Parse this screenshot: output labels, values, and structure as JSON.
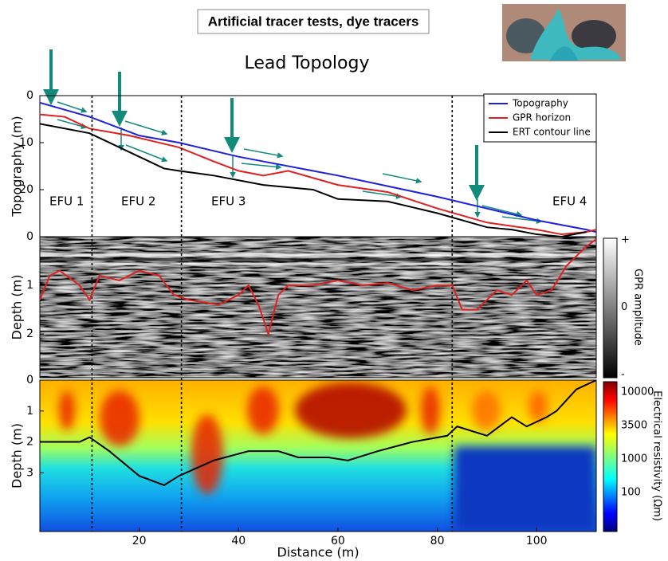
{
  "header": "Artificial tracer tests, dye tracers",
  "title": "Lead Topology",
  "chart_data": [
    {
      "type": "line",
      "ylabel": "Topography (m)",
      "xlim": [
        0,
        112
      ],
      "ylim": [
        0,
        30
      ],
      "yticks": [
        0,
        10,
        20
      ],
      "boundaries": [
        10.5,
        28.5,
        83
      ],
      "annotations": [
        "EFU 1",
        "EFU 2",
        "EFU 3",
        "EFU 4"
      ],
      "legend": "upper right",
      "series": [
        {
          "name": "Topography",
          "color": "#1f1fe0",
          "x": [
            0,
            10,
            20,
            28,
            40,
            60,
            80,
            90,
            100,
            110,
            112
          ],
          "values": [
            1.5,
            4.5,
            8.5,
            10,
            13,
            17,
            21.5,
            24,
            26.5,
            28.5,
            29
          ]
        },
        {
          "name": "GPR horizon",
          "color": "#e01f1f",
          "x": [
            0,
            5,
            10,
            18,
            22,
            28,
            35,
            40,
            45,
            50,
            60,
            70,
            80,
            90,
            100,
            105,
            110,
            112
          ],
          "values": [
            4,
            4.5,
            7,
            8.5,
            9.5,
            11,
            14,
            16,
            17,
            16,
            19,
            20.5,
            24,
            27,
            28.5,
            29.5,
            29,
            28.5
          ]
        },
        {
          "name": "ERT contour line",
          "color": "#000000",
          "x": [
            0,
            10,
            15,
            20,
            25,
            28,
            35,
            45,
            55,
            60,
            70,
            80,
            90,
            95,
            100,
            105,
            110
          ],
          "values": [
            6,
            8,
            10.5,
            13,
            15.5,
            16,
            17,
            19,
            20,
            22,
            22.5,
            25,
            28,
            28.5,
            29.5,
            30,
            29
          ]
        }
      ]
    },
    {
      "type": "line",
      "ylabel": "Depth (m)",
      "xlim": [
        0,
        112
      ],
      "ylim": [
        0,
        2.9
      ],
      "yticks": [
        0,
        1,
        2
      ],
      "colorbar": {
        "label": "GPR amplitude",
        "ticks": [
          "+",
          "0",
          "-"
        ]
      },
      "series": [
        {
          "color": "#e01f1f",
          "x": [
            0,
            2,
            4,
            8,
            10,
            12,
            16,
            20,
            24,
            27,
            30,
            36,
            40,
            42,
            44,
            46,
            48,
            50,
            55,
            60,
            65,
            70,
            75,
            80,
            83,
            85,
            88,
            92,
            95,
            98,
            100,
            103,
            106,
            110,
            112
          ],
          "values": [
            1.3,
            0.8,
            0.7,
            1.0,
            1.3,
            0.8,
            0.9,
            0.7,
            0.8,
            1.2,
            1.3,
            1.4,
            1.2,
            1.0,
            1.4,
            2.0,
            1.2,
            1.0,
            1.0,
            0.9,
            1.0,
            0.95,
            1.1,
            1.0,
            1.0,
            1.5,
            1.5,
            1.1,
            1.2,
            0.9,
            1.2,
            1.1,
            0.6,
            0.2,
            0.05
          ]
        }
      ]
    },
    {
      "type": "line",
      "xlabel": "Distance (m)",
      "ylabel": "Depth (m)",
      "xlim": [
        0,
        112
      ],
      "xticks": [
        20,
        40,
        60,
        80,
        100
      ],
      "ylim": [
        0,
        4.9
      ],
      "yticks": [
        0,
        1,
        2,
        3
      ],
      "colorbar": {
        "label": "Electrical resistivity (Ωm)",
        "ticks": [
          10000,
          3500,
          1000,
          100
        ]
      },
      "series": [
        {
          "color": "#000000",
          "x": [
            0,
            8,
            10,
            14,
            20,
            25,
            28,
            35,
            42,
            48,
            52,
            58,
            62,
            68,
            75,
            82,
            84,
            88,
            90,
            95,
            98,
            102,
            104,
            108,
            112
          ],
          "values": [
            2.0,
            2.0,
            1.85,
            2.3,
            3.1,
            3.4,
            3.1,
            2.6,
            2.3,
            2.3,
            2.5,
            2.5,
            2.6,
            2.3,
            2.0,
            1.8,
            1.5,
            1.7,
            1.8,
            1.2,
            1.5,
            1.2,
            1.0,
            0.3,
            0.0
          ]
        }
      ]
    }
  ]
}
